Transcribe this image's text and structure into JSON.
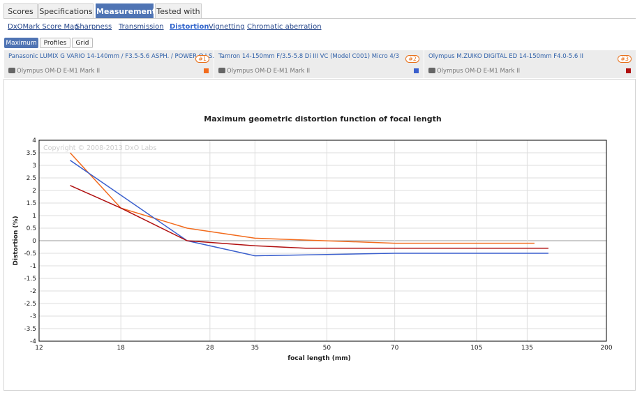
{
  "tabs": [
    "Scores",
    "Specifications",
    "Measurements",
    "Tested with"
  ],
  "active_tab": 2,
  "subnav": [
    "DxOMark Score Map",
    "Sharpness",
    "Transmission",
    "Distortion",
    "Vignetting",
    "Chromatic aberration"
  ],
  "active_subnav": 3,
  "view_buttons": [
    "Maximum",
    "Profiles",
    "Grid"
  ],
  "active_button": 0,
  "lenses": [
    {
      "name": "Panasonic LUMIX G VARIO 14-140mm / F3.5-5.6 ASPH. / POWER O.I.S.",
      "rank": "#1",
      "camera": "Olympus OM-D E-M1 Mark II"
    },
    {
      "name": "Tamron 14-150mm F/3.5-5.8 Di III VC (Model C001) Micro 4/3",
      "rank": "#2",
      "camera": "Olympus OM-D E-M1 Mark II"
    },
    {
      "name": "Olympus M.ZUIKO DIGITAL ED 14-150mm F4.0-5.6 II",
      "rank": "#3",
      "camera": "Olympus OM-D E-M1 Mark II"
    }
  ],
  "chart_data": {
    "type": "line",
    "title": "Maximum geometric distortion function of focal length",
    "annotation": "Copyright © 2008-2013 DxO Labs",
    "x_label": "focal length (mm)",
    "y_label": "Distortion (%)",
    "xscale": "log",
    "xlim": [
      12,
      200
    ],
    "xticks": [
      12,
      18,
      28,
      35,
      50,
      70,
      105,
      135,
      200
    ],
    "ylim": [
      -4,
      4
    ],
    "yticks": [
      -4,
      -3.5,
      -3,
      -2.5,
      -2,
      -1.5,
      -1,
      -0.5,
      0,
      0.5,
      1,
      1.5,
      2,
      2.5,
      3,
      3.5,
      4
    ],
    "grid": true,
    "series": [
      {
        "name": "Panasonic LUMIX G VARIO 14-140mm / F3.5-5.6 ASPH. / POWER O.I.S.",
        "color": "#f26b1d",
        "x": [
          14,
          18,
          25,
          35,
          70,
          140
        ],
        "values": [
          3.5,
          1.3,
          0.5,
          0.1,
          -0.1,
          -0.1
        ]
      },
      {
        "name": "Tamron 14-150mm F/3.5-5.8 Di III VC (Model C001) Micro 4/3",
        "color": "#3a5fcd",
        "x": [
          14,
          25,
          35,
          70,
          150
        ],
        "values": [
          3.2,
          0,
          -0.6,
          -0.5,
          -0.5
        ]
      },
      {
        "name": "Olympus M.ZUIKO DIGITAL ED 14-150mm F4.0-5.6 II",
        "color": "#b01010",
        "x": [
          14,
          18,
          25,
          35,
          45,
          150
        ],
        "values": [
          2.2,
          1.3,
          0,
          -0.2,
          -0.3,
          -0.3
        ]
      }
    ]
  }
}
